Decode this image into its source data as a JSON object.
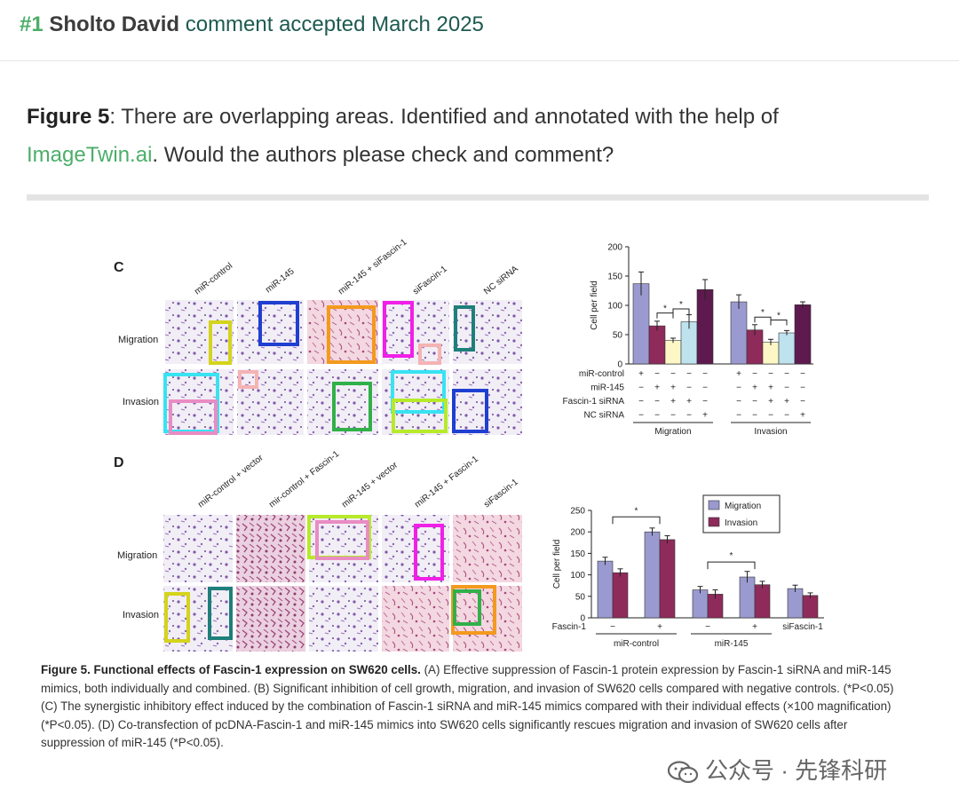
{
  "header": {
    "number": "#1",
    "author": "Sholto David",
    "status": "comment accepted March 2025"
  },
  "comment": {
    "figure_ref": "Figure 5",
    "text_before_link": ": There are overlapping areas. Identified and annotated with the help of",
    "link": "ImageTwin.ai",
    "text_after_link": ". Would the authors please check and comment?"
  },
  "figure": {
    "panel_c": {
      "letter": "C",
      "columns": [
        "miR-control",
        "miR-145",
        "miR-145 + siFascin-1",
        "siFascin-1",
        "NC siRNA"
      ],
      "rows": [
        "Migration",
        "Invasion"
      ]
    },
    "panel_d": {
      "letter": "D",
      "columns": [
        "miR-control + vector",
        "mir-control + Fascin-1",
        "miR-145 + vector",
        "miR-145 + Fascin-1",
        "siFascin-1"
      ],
      "rows": [
        "Migration",
        "Invasion"
      ]
    },
    "caption": {
      "title": "Figure 5. Functional effects of Fascin-1 expression on SW620 cells.",
      "body": " (A) Effective suppression of Fascin-1 protein expression by Fascin-1 siRNA and miR-145 mimics, both individually and combined. (B) Significant inhibition of cell growth, migration, and invasion of SW620 cells compared with negative controls. (*P<0.05) (C) The synergistic inhibitory effect induced by the combination of Fascin-1 siRNA and miR-145 mimics compared with their individual effects (×100 magnification) (*P<0.05). (D) Co-transfection of pcDNA-Fascin-1 and miR-145 mimics into SW620 cells significantly rescues migration and invasion of SW620 cells after suppression of miR-145 (*P<0.05)."
    }
  },
  "watermark": "公众号 · 先锋科研",
  "chart_data": [
    {
      "type": "bar",
      "ylabel": "Cell per field",
      "ylim": [
        0,
        200
      ],
      "yticks": [
        0,
        50,
        100,
        150,
        200
      ],
      "groups": [
        "Migration",
        "Invasion"
      ],
      "bar_colors": [
        "#9a9ad0",
        "#8e2b5a",
        "#fdf7c6",
        "#bfe2ef",
        "#5e1a4e"
      ],
      "values": {
        "Migration": [
          137,
          65,
          40,
          72,
          127
        ],
        "Invasion": [
          106,
          58,
          37,
          53,
          101
        ]
      },
      "errors": {
        "Migration": [
          20,
          8,
          4,
          12,
          17
        ],
        "Invasion": [
          12,
          9,
          5,
          4,
          5
        ]
      },
      "conditions": [
        {
          "label": "miR-control",
          "Migration": [
            "+",
            "−",
            "−",
            "−",
            "−"
          ],
          "Invasion": [
            "+",
            "−",
            "−",
            "−",
            "−"
          ]
        },
        {
          "label": "miR-145",
          "Migration": [
            "−",
            "+",
            "+",
            "−",
            "−"
          ],
          "Invasion": [
            "−",
            "+",
            "+",
            "−",
            "−"
          ]
        },
        {
          "label": "Fascin-1 siRNA",
          "Migration": [
            "−",
            "−",
            "+",
            "+",
            "−"
          ],
          "Invasion": [
            "−",
            "−",
            "+",
            "+",
            "−"
          ]
        },
        {
          "label": "NC siRNA",
          "Migration": [
            "−",
            "−",
            "−",
            "−",
            "+"
          ],
          "Invasion": [
            "−",
            "−",
            "−",
            "−",
            "+"
          ]
        }
      ],
      "significance": "*"
    },
    {
      "type": "bar",
      "ylabel": "Cell per field",
      "ylim": [
        0,
        250
      ],
      "yticks": [
        0,
        50,
        100,
        150,
        200,
        250
      ],
      "series": [
        {
          "name": "Migration",
          "color": "#9a9ad0",
          "values": [
            132,
            200,
            65,
            95,
            68
          ]
        },
        {
          "name": "Invasion",
          "color": "#8e2b5a",
          "values": [
            105,
            182,
            55,
            77,
            52
          ]
        }
      ],
      "errors": {
        "Migration": [
          9,
          9,
          8,
          13,
          8
        ],
        "Invasion": [
          9,
          9,
          10,
          8,
          6
        ]
      },
      "fascin_row_label": "Fascin-1",
      "fascin_marks": [
        "−",
        "+",
        "−",
        "+",
        "siFascin-1"
      ],
      "groups": [
        "miR-control",
        "miR-145"
      ],
      "significance": "*"
    }
  ]
}
